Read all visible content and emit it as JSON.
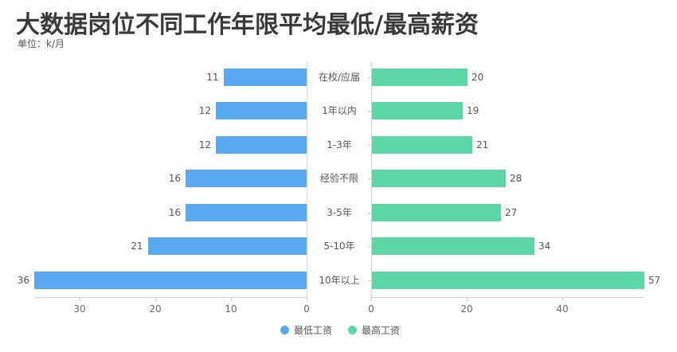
{
  "header": {
    "title": "大数据岗位不同工作年限平均最低/最高薪资",
    "unit": "单位：k/月"
  },
  "colors": {
    "low": "#58a9f0",
    "high": "#5dd6a8"
  },
  "legend": [
    {
      "label": "最低工资",
      "color": "#58a9f0"
    },
    {
      "label": "最高工资",
      "color": "#5dd6a8"
    }
  ],
  "left_axis": {
    "ticks": [
      "30",
      "20",
      "10",
      "0"
    ]
  },
  "right_axis": {
    "ticks": [
      "0",
      "20",
      "40"
    ]
  },
  "chart_data": {
    "type": "bar",
    "orientation": "horizontal-butterfly",
    "title": "大数据岗位不同工作年限平均最低/最高薪资",
    "subtitle": "单位：k/月",
    "categories": [
      "在校/应届",
      "1年以内",
      "1-3年",
      "经验不限",
      "3-5年",
      "5-10年",
      "10年以上"
    ],
    "series": [
      {
        "name": "最低工资",
        "values": [
          11,
          12,
          12,
          16,
          16,
          21,
          36
        ],
        "side": "left"
      },
      {
        "name": "最高工资",
        "values": [
          20,
          19,
          21,
          28,
          27,
          34,
          57
        ],
        "side": "right"
      }
    ],
    "xlim_left": [
      0,
      36
    ],
    "xlim_right": [
      0,
      57
    ],
    "left_ticks": [
      0,
      10,
      20,
      30
    ],
    "right_ticks": [
      0,
      20,
      40
    ],
    "legend_position": "bottom",
    "grid": false
  }
}
